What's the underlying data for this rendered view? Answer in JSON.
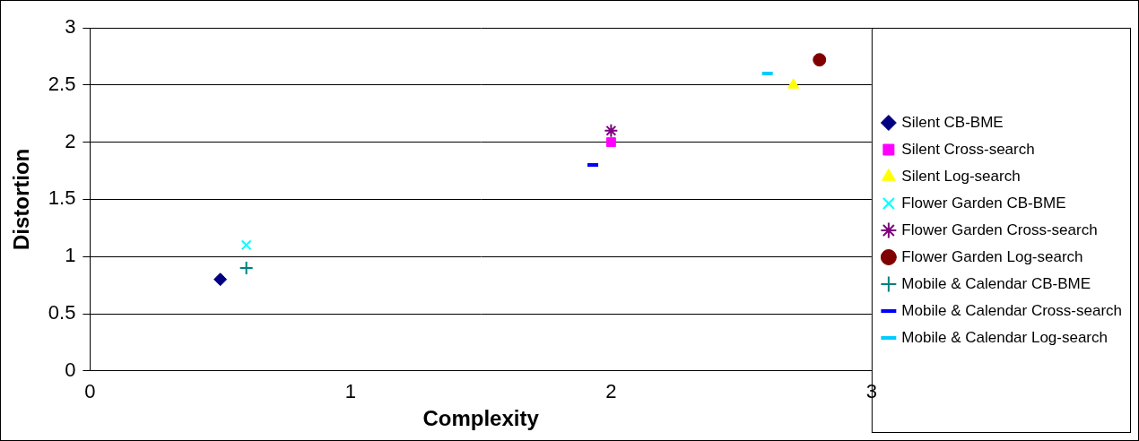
{
  "chart_data": {
    "type": "scatter",
    "x_label": "Complexity",
    "y_label": "Distortion",
    "xlim": [
      0,
      3
    ],
    "xticks": [
      0,
      1,
      2,
      3
    ],
    "ylim": [
      0,
      3
    ],
    "yticks": [
      0,
      0.5,
      1,
      1.5,
      2,
      2.5,
      3
    ],
    "grid": "y",
    "legend": "right",
    "series": [
      {
        "name": "Silent CB-BME",
        "color": "#000080",
        "marker": "diamond",
        "x": [
          0.5
        ],
        "values": [
          0.8
        ]
      },
      {
        "name": "Silent Cross-search",
        "color": "#ff00ff",
        "marker": "square",
        "x": [
          2.0
        ],
        "values": [
          2.0
        ]
      },
      {
        "name": "Silent Log-search",
        "color": "#ffff00",
        "marker": "triangle",
        "x": [
          2.7
        ],
        "values": [
          2.5
        ]
      },
      {
        "name": "Flower Garden CB-BME",
        "color": "#00ffff",
        "marker": "x",
        "x": [
          0.6
        ],
        "values": [
          1.1
        ]
      },
      {
        "name": "Flower Garden Cross-search",
        "color": "#800080",
        "marker": "star",
        "x": [
          2.0
        ],
        "values": [
          2.1
        ]
      },
      {
        "name": "Flower Garden Log-search",
        "color": "#800000",
        "marker": "circle",
        "x": [
          2.8
        ],
        "values": [
          2.72
        ]
      },
      {
        "name": "Mobile & Calendar CB-BME",
        "color": "#008080",
        "marker": "plus",
        "x": [
          0.6
        ],
        "values": [
          0.9
        ]
      },
      {
        "name": "Mobile & Calendar Cross-search",
        "color": "#0000ff",
        "marker": "dash",
        "x": [
          1.93
        ],
        "values": [
          1.8
        ]
      },
      {
        "name": "Mobile & Calendar Log-search",
        "color": "#00ccff",
        "marker": "dash",
        "x": [
          2.6
        ],
        "values": [
          2.6
        ]
      }
    ]
  }
}
